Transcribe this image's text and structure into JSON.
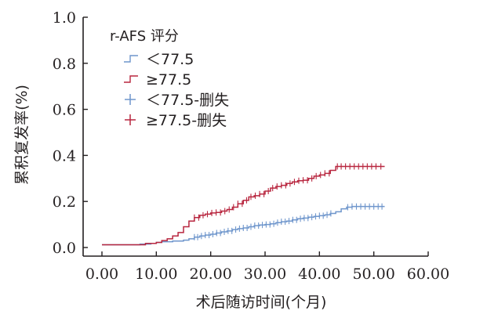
{
  "colors": {
    "low": "#6f96cc",
    "high": "#b8263f",
    "axis": "#231f20"
  },
  "legend": {
    "title": "r-AFS 评分",
    "items": [
      {
        "label": "＜77.5",
        "kind": "step",
        "series": "low"
      },
      {
        "label": "≥77.5",
        "kind": "step",
        "series": "high"
      },
      {
        "label": "＜77.5-删失",
        "kind": "censor",
        "series": "low"
      },
      {
        "label": "≥77.5-删失",
        "kind": "censor",
        "series": "high"
      }
    ]
  },
  "chart_data": {
    "type": "line",
    "step": true,
    "xlabel": "术后随访时间(个月)",
    "ylabel": "累积复发率(%)",
    "xlim": [
      0,
      60
    ],
    "ylim": [
      0,
      1
    ],
    "x_ticks": [
      "0.00",
      "10.00",
      "20.00",
      "30.00",
      "40.00",
      "50.00",
      "60.00"
    ],
    "y_ticks": [
      "0.0",
      "0.2",
      "0.4",
      "0.6",
      "0.8",
      "1.0"
    ],
    "grid": false,
    "legend_position": "top-left",
    "series": [
      {
        "name": "＜77.5",
        "color_key": "low",
        "points": [
          [
            0,
            0.012
          ],
          [
            6,
            0.012
          ],
          [
            7,
            0.015
          ],
          [
            9,
            0.018
          ],
          [
            10,
            0.022
          ],
          [
            11,
            0.025
          ],
          [
            13,
            0.028
          ],
          [
            15,
            0.032
          ],
          [
            16,
            0.038
          ],
          [
            17,
            0.045
          ],
          [
            18,
            0.05
          ],
          [
            19,
            0.054
          ],
          [
            20,
            0.058
          ],
          [
            21,
            0.063
          ],
          [
            22,
            0.068
          ],
          [
            23,
            0.072
          ],
          [
            24,
            0.078
          ],
          [
            25,
            0.082
          ],
          [
            26,
            0.085
          ],
          [
            27,
            0.09
          ],
          [
            28,
            0.095
          ],
          [
            29,
            0.098
          ],
          [
            30,
            0.1
          ],
          [
            31,
            0.103
          ],
          [
            32,
            0.108
          ],
          [
            33,
            0.112
          ],
          [
            34,
            0.115
          ],
          [
            35,
            0.12
          ],
          [
            36,
            0.125
          ],
          [
            37,
            0.128
          ],
          [
            38,
            0.132
          ],
          [
            39,
            0.135
          ],
          [
            40,
            0.138
          ],
          [
            41,
            0.142
          ],
          [
            42,
            0.148
          ],
          [
            43,
            0.155
          ],
          [
            44,
            0.168
          ],
          [
            45,
            0.175
          ],
          [
            46,
            0.178
          ],
          [
            52,
            0.178
          ]
        ],
        "censored_x": [
          17,
          17.6,
          18.3,
          19,
          19.7,
          20.4,
          21.1,
          21.8,
          22.5,
          23.2,
          23.9,
          24.6,
          25.3,
          26,
          26.7,
          27.4,
          28.1,
          28.8,
          29.5,
          30.2,
          30.9,
          31.6,
          32.3,
          33,
          33.7,
          34.4,
          35.1,
          35.8,
          36.5,
          37.2,
          37.9,
          38.6,
          39.3,
          40,
          40.7,
          41.4,
          42.1,
          45.2,
          46,
          46.8,
          47.6,
          48.4,
          49.2,
          50,
          50.8,
          51.5
        ]
      },
      {
        "name": "≥77.5",
        "color_key": "high",
        "points": [
          [
            0,
            0.012
          ],
          [
            7,
            0.012
          ],
          [
            8,
            0.018
          ],
          [
            10,
            0.022
          ],
          [
            11,
            0.03
          ],
          [
            12,
            0.038
          ],
          [
            13,
            0.05
          ],
          [
            14,
            0.065
          ],
          [
            15,
            0.09
          ],
          [
            16,
            0.115
          ],
          [
            17,
            0.13
          ],
          [
            18,
            0.14
          ],
          [
            19,
            0.145
          ],
          [
            20,
            0.15
          ],
          [
            21,
            0.152
          ],
          [
            22,
            0.158
          ],
          [
            23,
            0.165
          ],
          [
            24,
            0.175
          ],
          [
            25,
            0.19
          ],
          [
            26,
            0.205
          ],
          [
            27,
            0.22
          ],
          [
            28,
            0.225
          ],
          [
            29,
            0.232
          ],
          [
            30,
            0.245
          ],
          [
            31,
            0.258
          ],
          [
            32,
            0.265
          ],
          [
            33,
            0.27
          ],
          [
            34,
            0.278
          ],
          [
            35,
            0.285
          ],
          [
            36,
            0.29
          ],
          [
            37,
            0.292
          ],
          [
            38,
            0.3
          ],
          [
            39,
            0.31
          ],
          [
            40,
            0.315
          ],
          [
            41,
            0.322
          ],
          [
            42,
            0.335
          ],
          [
            43,
            0.352
          ],
          [
            52,
            0.352
          ]
        ],
        "censored_x": [
          17,
          17.8,
          18.6,
          19.4,
          20.2,
          21,
          21.8,
          22.6,
          23.4,
          24.2,
          25,
          25.8,
          26.6,
          27.4,
          28.2,
          29,
          29.8,
          30.6,
          31.4,
          32.2,
          33,
          33.8,
          34.6,
          35.4,
          36.2,
          37,
          37.8,
          38.6,
          39.4,
          40.2,
          41,
          41.8,
          43.3,
          44,
          44.8,
          45.6,
          46.4,
          47.2,
          48,
          48.8,
          49.6,
          50.4,
          51.3
        ]
      }
    ]
  }
}
